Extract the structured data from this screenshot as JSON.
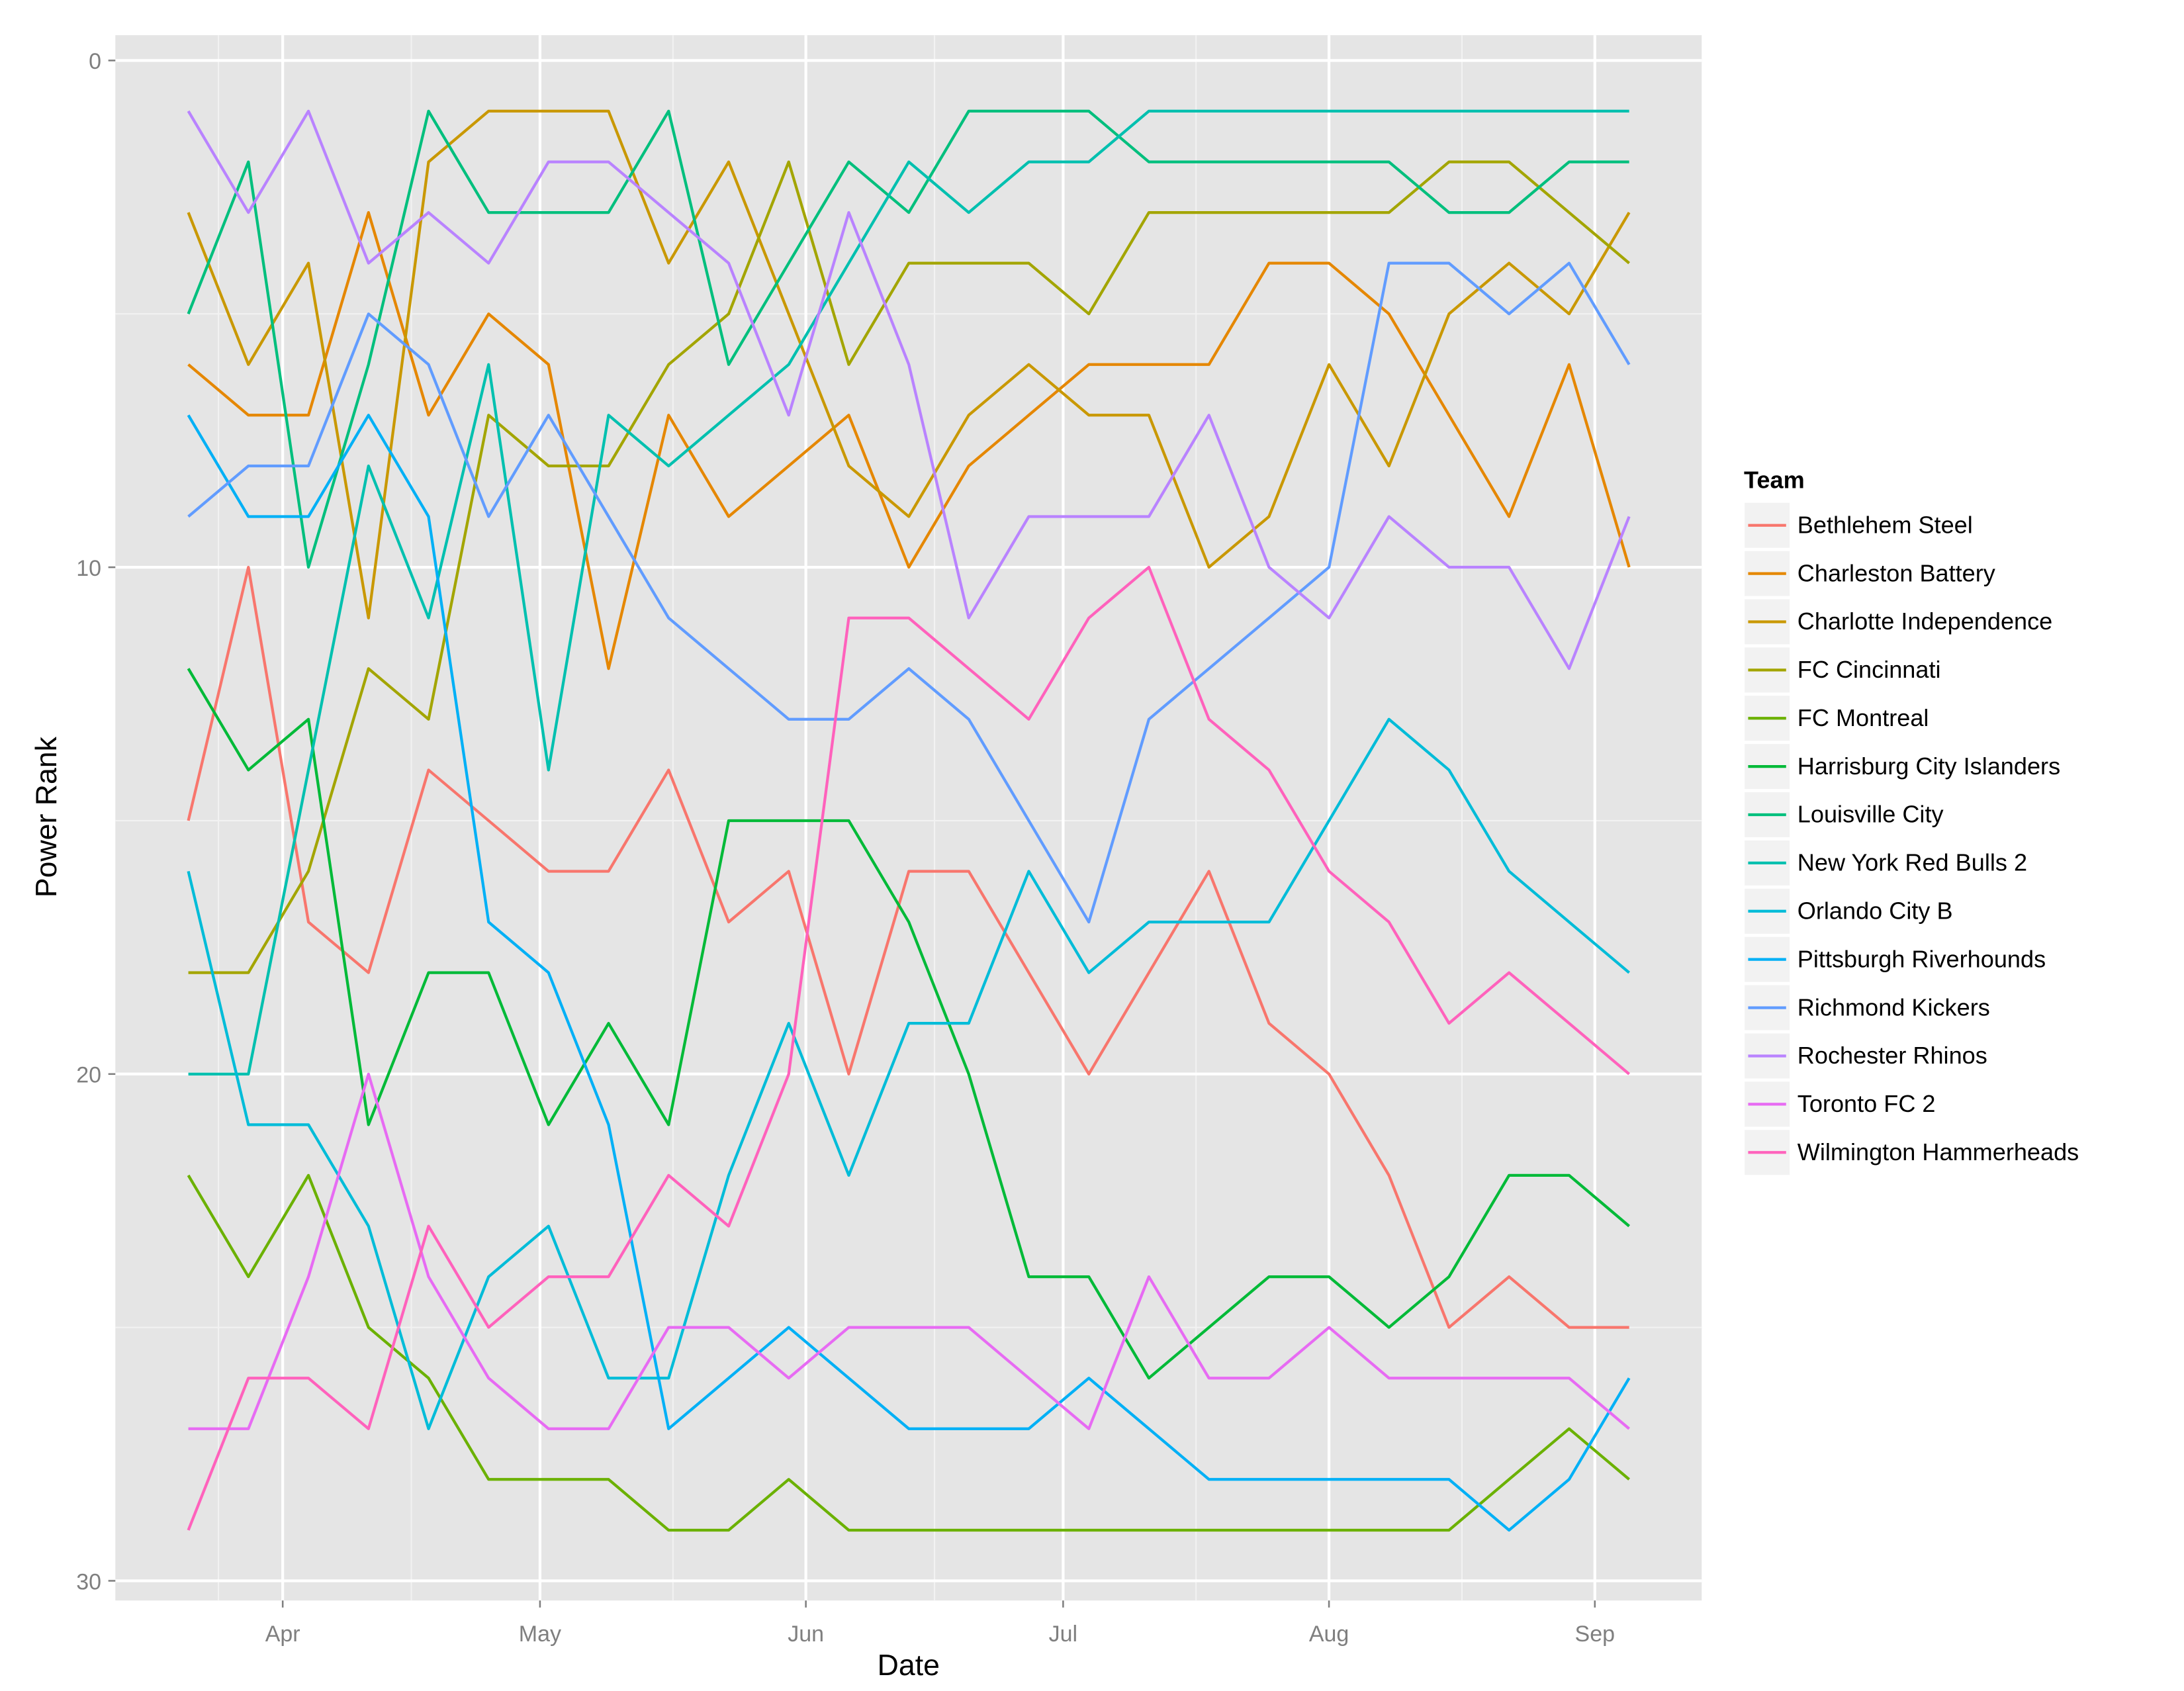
{
  "chart_data": {
    "type": "line",
    "title": "",
    "xlabel": "Date",
    "ylabel": "Power Rank",
    "y_reversed": true,
    "ylim": [
      0,
      30
    ],
    "yticks": [
      0,
      10,
      20,
      30
    ],
    "xticks": [
      {
        "label": "Apr",
        "date": "2016-04-01"
      },
      {
        "label": "May",
        "date": "2016-05-01"
      },
      {
        "label": "Jun",
        "date": "2016-06-01"
      },
      {
        "label": "Jul",
        "date": "2016-07-01"
      },
      {
        "label": "Aug",
        "date": "2016-08-01"
      },
      {
        "label": "Sep",
        "date": "2016-09-01"
      }
    ],
    "grid": true,
    "background": "#E5E5E5",
    "legend_title": "Team",
    "legend_position": "right",
    "x": [
      "2016-03-21",
      "2016-03-28",
      "2016-04-04",
      "2016-04-11",
      "2016-04-18",
      "2016-04-25",
      "2016-05-02",
      "2016-05-09",
      "2016-05-16",
      "2016-05-23",
      "2016-05-30",
      "2016-06-06",
      "2016-06-13",
      "2016-06-20",
      "2016-06-27",
      "2016-07-04",
      "2016-07-11",
      "2016-07-18",
      "2016-07-25",
      "2016-08-01",
      "2016-08-08",
      "2016-08-15",
      "2016-08-22",
      "2016-08-29",
      "2016-09-05"
    ],
    "series": [
      {
        "name": "Bethlehem Steel",
        "color": "#F8766D",
        "values": [
          15,
          10,
          17,
          18,
          14,
          15,
          16,
          16,
          14,
          17,
          16,
          20,
          16,
          16,
          18,
          20,
          18,
          16,
          19,
          20,
          22,
          25,
          24,
          25,
          25
        ]
      },
      {
        "name": "Charleston Battery",
        "color": "#E58700",
        "values": [
          6,
          7,
          7,
          3,
          7,
          5,
          6,
          12,
          7,
          9,
          8,
          7,
          10,
          8,
          7,
          6,
          6,
          6,
          4,
          4,
          5,
          7,
          9,
          6,
          10
        ]
      },
      {
        "name": "Charlotte Independence",
        "color": "#C99800",
        "values": [
          3,
          6,
          4,
          11,
          2,
          1,
          1,
          1,
          4,
          2,
          5,
          8,
          9,
          7,
          6,
          7,
          7,
          10,
          9,
          6,
          8,
          5,
          4,
          5,
          3
        ]
      },
      {
        "name": "FC Cincinnati",
        "color": "#A3A500",
        "values": [
          18,
          18,
          16,
          12,
          13,
          7,
          8,
          8,
          6,
          5,
          2,
          6,
          4,
          4,
          4,
          5,
          3,
          3,
          3,
          3,
          3,
          2,
          2,
          3,
          4
        ]
      },
      {
        "name": "FC Montreal",
        "color": "#6BB100",
        "values": [
          22,
          24,
          22,
          25,
          26,
          28,
          28,
          28,
          29,
          29,
          28,
          29,
          29,
          29,
          29,
          29,
          29,
          29,
          29,
          29,
          29,
          29,
          28,
          27,
          28
        ]
      },
      {
        "name": "Harrisburg City Islanders",
        "color": "#00BA38",
        "values": [
          12,
          14,
          13,
          21,
          18,
          18,
          21,
          19,
          21,
          15,
          15,
          15,
          17,
          20,
          24,
          24,
          26,
          25,
          24,
          24,
          25,
          24,
          22,
          22,
          23
        ]
      },
      {
        "name": "Louisville City",
        "color": "#00BF7D",
        "values": [
          5,
          2,
          10,
          6,
          1,
          3,
          3,
          3,
          1,
          6,
          4,
          2,
          3,
          1,
          1,
          1,
          2,
          2,
          2,
          2,
          2,
          3,
          3,
          2,
          2
        ]
      },
      {
        "name": "New York Red Bulls 2",
        "color": "#00C0AF",
        "values": [
          20,
          20,
          14,
          8,
          11,
          6,
          14,
          7,
          8,
          7,
          6,
          4,
          2,
          3,
          2,
          2,
          1,
          1,
          1,
          1,
          1,
          1,
          1,
          1,
          1
        ]
      },
      {
        "name": "Orlando City B",
        "color": "#00BCD8",
        "values": [
          16,
          21,
          21,
          23,
          27,
          24,
          23,
          26,
          26,
          22,
          19,
          22,
          19,
          19,
          16,
          18,
          17,
          17,
          17,
          15,
          13,
          14,
          16,
          17,
          18
        ]
      },
      {
        "name": "Pittsburgh Riverhounds",
        "color": "#00B0F6",
        "values": [
          7,
          9,
          9,
          7,
          9,
          17,
          18,
          21,
          27,
          26,
          25,
          26,
          27,
          27,
          27,
          26,
          27,
          28,
          28,
          28,
          28,
          28,
          29,
          28,
          26
        ]
      },
      {
        "name": "Richmond Kickers",
        "color": "#619CFF",
        "values": [
          9,
          8,
          8,
          5,
          6,
          9,
          7,
          9,
          11,
          12,
          13,
          13,
          12,
          13,
          15,
          17,
          13,
          12,
          11,
          10,
          4,
          4,
          5,
          4,
          6
        ]
      },
      {
        "name": "Rochester Rhinos",
        "color": "#B983FF",
        "values": [
          1,
          3,
          1,
          4,
          3,
          4,
          2,
          2,
          3,
          4,
          7,
          3,
          6,
          11,
          9,
          9,
          9,
          7,
          10,
          11,
          9,
          10,
          10,
          12,
          9
        ]
      },
      {
        "name": "Toronto FC 2",
        "color": "#E76BF3",
        "values": [
          27,
          27,
          24,
          20,
          24,
          26,
          27,
          27,
          25,
          25,
          26,
          25,
          25,
          25,
          26,
          27,
          24,
          26,
          26,
          25,
          26,
          26,
          26,
          26,
          27
        ]
      },
      {
        "name": "Wilmington Hammerheads",
        "color": "#FF62BC",
        "values": [
          29,
          26,
          26,
          27,
          23,
          25,
          24,
          24,
          22,
          23,
          20,
          11,
          11,
          12,
          13,
          11,
          10,
          13,
          14,
          16,
          17,
          19,
          18,
          19,
          20
        ]
      }
    ]
  }
}
